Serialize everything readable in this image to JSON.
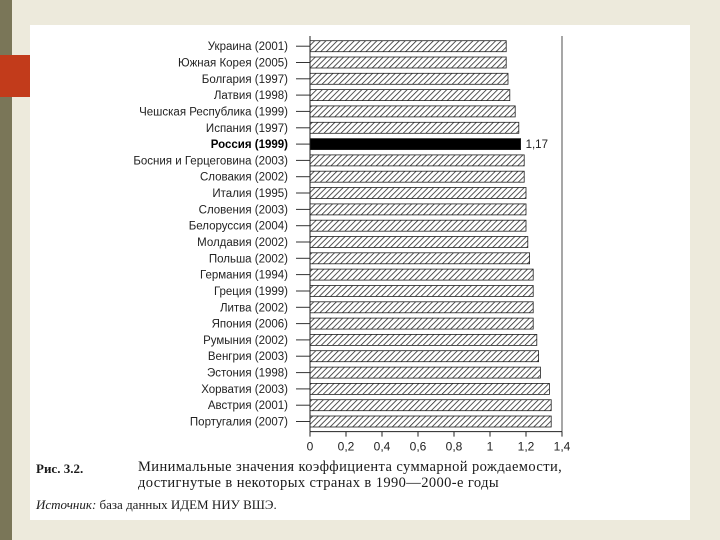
{
  "theme": {
    "left_band": "#7a7658",
    "accent": "#c23b1b",
    "page_bg": "#ffffff",
    "bar_fill": "hatched",
    "highlight_bar": "#000000"
  },
  "chart_data": {
    "type": "bar",
    "orientation": "horizontal",
    "categories": [
      "Украина (2001)",
      "Южная Корея (2005)",
      "Болгария (1997)",
      "Латвия (1998)",
      "Чешская Республика (1999)",
      "Испания (1997)",
      "Россия (1999)",
      "Босния и Герцеговина (2003)",
      "Словакия (2002)",
      "Италия (1995)",
      "Словения (2003)",
      "Белоруссия (2004)",
      "Молдавия (2002)",
      "Польша (2002)",
      "Германия (1994)",
      "Греция (1999)",
      "Литва (2002)",
      "Япония (2006)",
      "Румыния (2002)",
      "Венгрия (2003)",
      "Эстония (1998)",
      "Хорватия (2003)",
      "Австрия (2001)",
      "Португалия (2007)"
    ],
    "values": [
      1.09,
      1.09,
      1.1,
      1.11,
      1.14,
      1.16,
      1.17,
      1.19,
      1.19,
      1.2,
      1.2,
      1.2,
      1.21,
      1.22,
      1.24,
      1.24,
      1.24,
      1.24,
      1.26,
      1.27,
      1.28,
      1.33,
      1.34,
      1.34
    ],
    "highlight_index": 6,
    "value_labels": [
      {
        "index": 6,
        "text": "1,17"
      }
    ],
    "xlim": [
      0,
      1.4
    ],
    "x_ticks": [
      "0",
      "0,2",
      "0,4",
      "0,6",
      "0,8",
      "1",
      "1,2",
      "1,4"
    ],
    "grid": false,
    "legend": "none"
  },
  "caption": {
    "number": "Рис. 3.2.",
    "line1": "Минимальные значения коэффициента суммарной рождаемости,",
    "line2": "достигнутые в некоторых странах в 1990—2000-е годы"
  },
  "source": {
    "label": "Источник:",
    "text": " база данных ИДЕМ НИУ ВШЭ."
  }
}
